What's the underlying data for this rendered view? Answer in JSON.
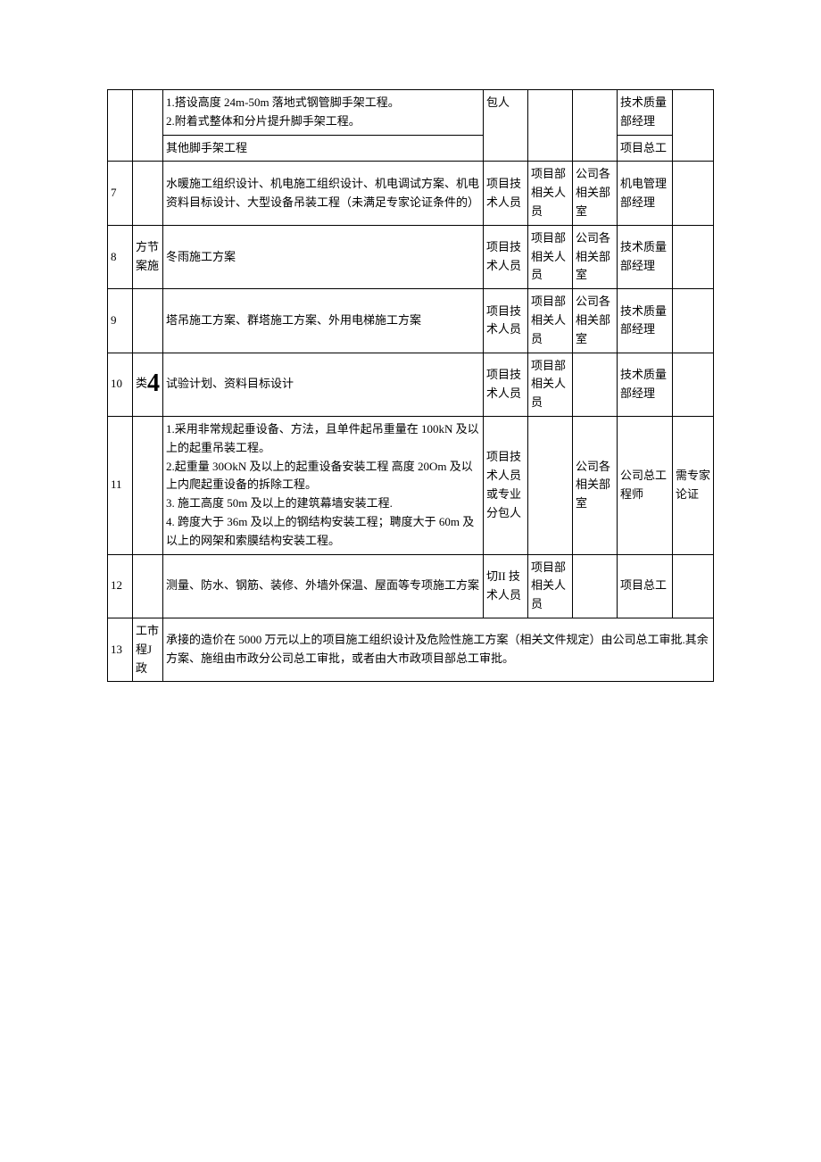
{
  "table": {
    "rows": [
      {
        "num": "",
        "cat": "",
        "sub1": "1.搭设高度 24m-50m 落地式钢管脚手架工程。\n2.附着式整体和分片提升脚手架工程。",
        "sub2": "其他脚手架工程",
        "c4": "包人",
        "c5": "",
        "c6": "",
        "c7a": "技术质量部经理",
        "c7b": "项目总工",
        "c8": ""
      },
      {
        "num": "7",
        "cat": "",
        "content": "水暖施工组织设计、机电施工组织设计、机电调试方案、机电资料目标设计、大型设备吊装工程（未满足专家论证条件的）",
        "c4": "项目技术人员",
        "c5": "项目部相关人员",
        "c6": "公司各相关部室",
        "c7": "机电管理部经理",
        "c8": ""
      },
      {
        "num": "8",
        "cat": "方节案施",
        "content": "冬雨施工方案",
        "c4": "项目技术人员",
        "c5": "项目部相关人员",
        "c6": "公司各相关部室",
        "c7": "技术质量部经理",
        "c8": ""
      },
      {
        "num": "9",
        "cat": "",
        "content": "塔吊施工方案、群塔施工方案、外用电梯施工方案",
        "c4": "项目技术人员",
        "c5": "项目部相关人员",
        "c6": "公司各相关部室",
        "c7": "技术质量部经理",
        "c8": ""
      },
      {
        "num": "10",
        "cat_pre": "类",
        "cat_big": "4",
        "content": "试验计划、资料目标设计",
        "c4": "项目技术人员",
        "c5": "项目部相关人员",
        "c6": "",
        "c7": "技术质量部经理",
        "c8": ""
      },
      {
        "num": "11",
        "cat": "",
        "content": "1.采用非常规起垂设备、方法，且单件起吊重量在 100kN 及以上的起重吊装工程。\n2.起重量 30OkN 及以上的起重设备安装工程 高度 20Om 及以上内爬起重设备的拆除工程。\n3. 施工高度 50m 及以上的建筑幕墙安装工程.\n4. 跨度大于 36m 及以上的钢结构安装工程；聘度大于 60m 及以上的网架和索膜结构安装工程。",
        "c4": "项目技术人员或专业分包人",
        "c5": "",
        "c6": "公司各相关部室",
        "c7": "公司总工程师",
        "c8": "需专家论证"
      },
      {
        "num": "12",
        "cat": "",
        "content": "测量、防水、钢筋、装修、外墙外保温、屋面等专项施工方案",
        "c4": "切II 技术人员",
        "c5": "项目部相关人员",
        "c6": "",
        "c7": "项目总工",
        "c8": ""
      },
      {
        "num": "13",
        "cat": "工市程J   政",
        "content": "承接的造价在 5000 万元以上的项目施工组织设计及危险性施工方案（相关文件规定）由公司总工审批.其余方案、施组由市政分公司总工审批，或者由大市政项目部总工审批。"
      }
    ]
  },
  "style": {
    "background_color": "#ffffff",
    "border_color": "#000000",
    "text_color": "#000000",
    "font_size": 13,
    "font_family": "SimSun"
  }
}
